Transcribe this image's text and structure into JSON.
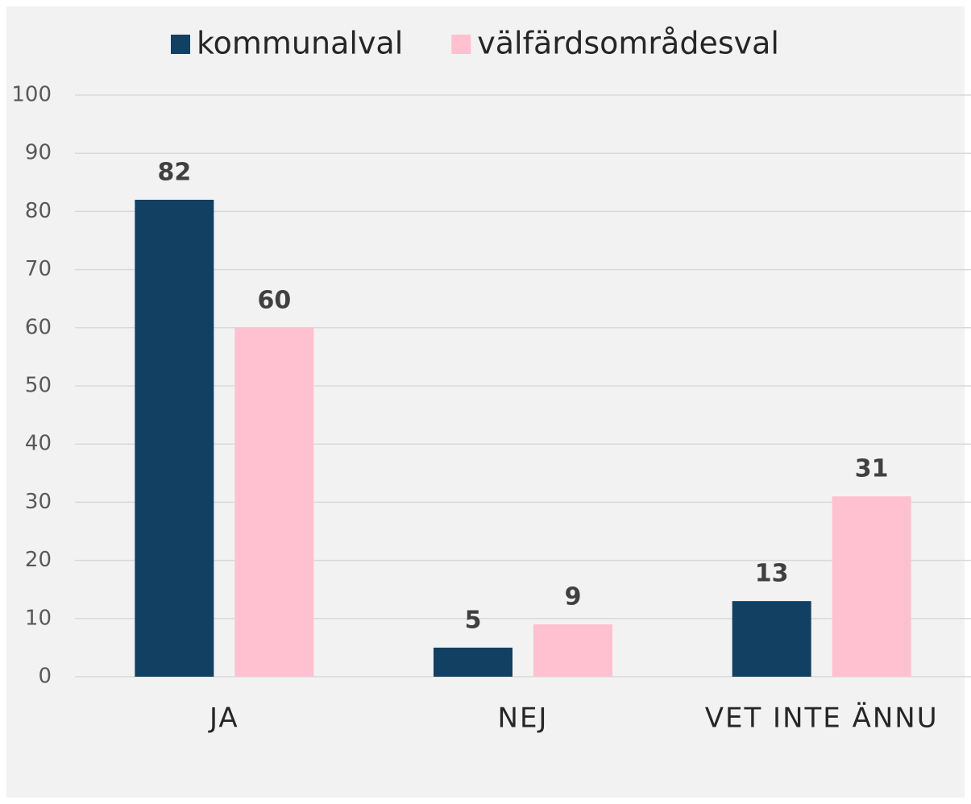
{
  "chart_data": {
    "type": "bar",
    "categories": [
      "JA",
      "NEJ",
      "VET INTE ÄNNU"
    ],
    "series": [
      {
        "name": "kommunalval",
        "color": "#124062",
        "values": [
          82,
          5,
          13
        ]
      },
      {
        "name": "välfärdsområdesval",
        "color": "#ffc0cf",
        "values": [
          60,
          9,
          31
        ]
      }
    ],
    "ylim": [
      0,
      100
    ],
    "yticks": [
      0,
      10,
      20,
      30,
      40,
      50,
      60,
      70,
      80,
      90,
      100
    ],
    "grid": true,
    "legend": "top"
  }
}
